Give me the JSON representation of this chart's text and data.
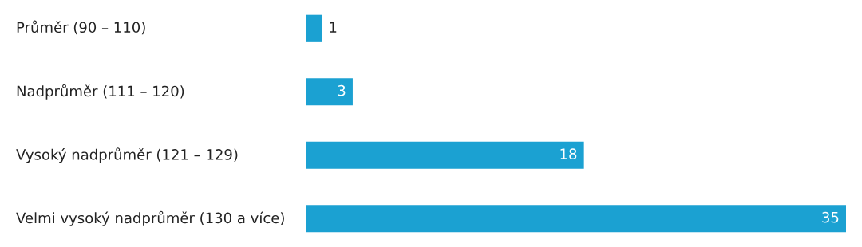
{
  "chart_data": {
    "type": "bar",
    "orientation": "horizontal",
    "data_labels": true,
    "categories": [
      "Průměr (90 – 110)",
      "Nadprůměr (111 – 120)",
      "Vysoký nadprůměr (121 – 129)",
      "Velmi vysoký nadprůměr (130 a více)"
    ],
    "values": [
      1,
      3,
      18,
      35
    ],
    "color": "#1ba1d2"
  }
}
